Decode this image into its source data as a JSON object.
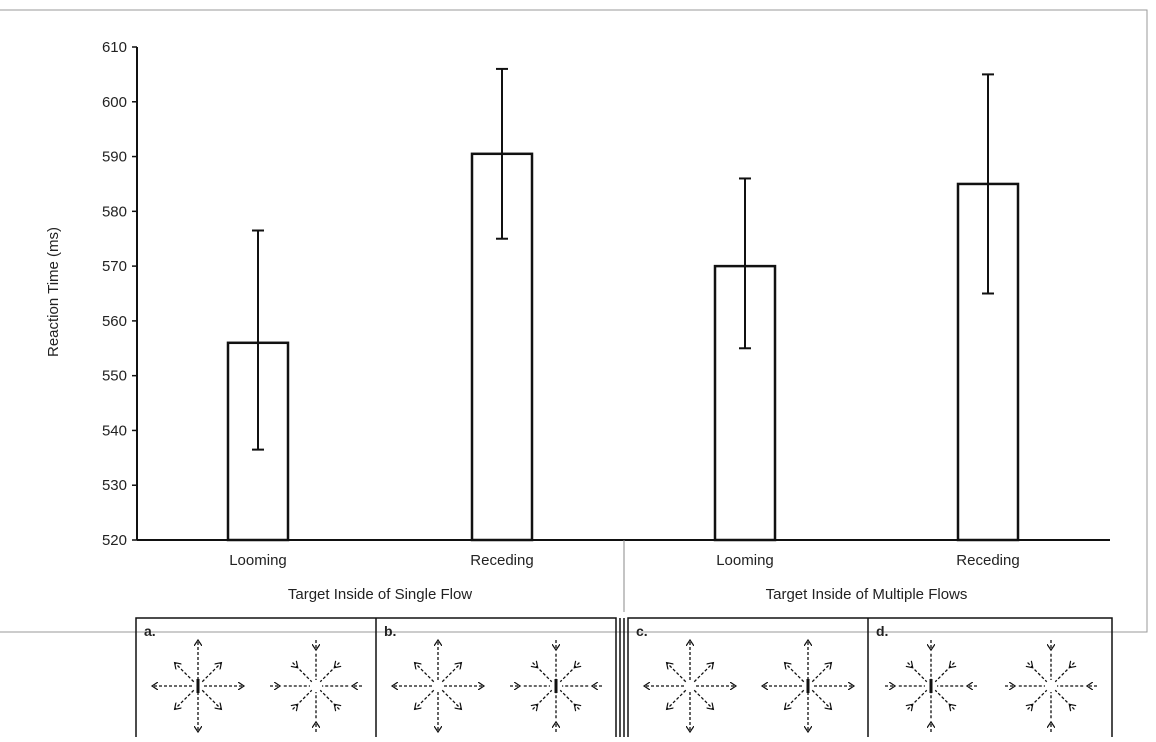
{
  "chart_data": {
    "type": "bar",
    "ylabel": "Reaction Time (ms)",
    "xlabel": "",
    "ylim": [
      520,
      610
    ],
    "yticks": [
      520,
      530,
      540,
      550,
      560,
      570,
      580,
      590,
      600,
      610
    ],
    "grid": false,
    "categories": [
      "Looming",
      "Receding",
      "Looming",
      "Receding"
    ],
    "groups": [
      {
        "label": "Target Inside of Single Flow",
        "categories": [
          0,
          1
        ]
      },
      {
        "label": "Target Inside of Multiple Flows",
        "categories": [
          2,
          3
        ]
      }
    ],
    "values": [
      556,
      590.5,
      570,
      585
    ],
    "error_low": [
      536.5,
      575,
      555,
      565
    ],
    "error_high": [
      576.5,
      606,
      586,
      605
    ]
  },
  "panels": [
    {
      "label": "a."
    },
    {
      "label": "b."
    },
    {
      "label": "c."
    },
    {
      "label": "d."
    }
  ],
  "colors": {
    "axis": "#111111",
    "bar_fill": "#ffffff",
    "bar_stroke": "#111111",
    "frame": "#9a9a9a"
  }
}
